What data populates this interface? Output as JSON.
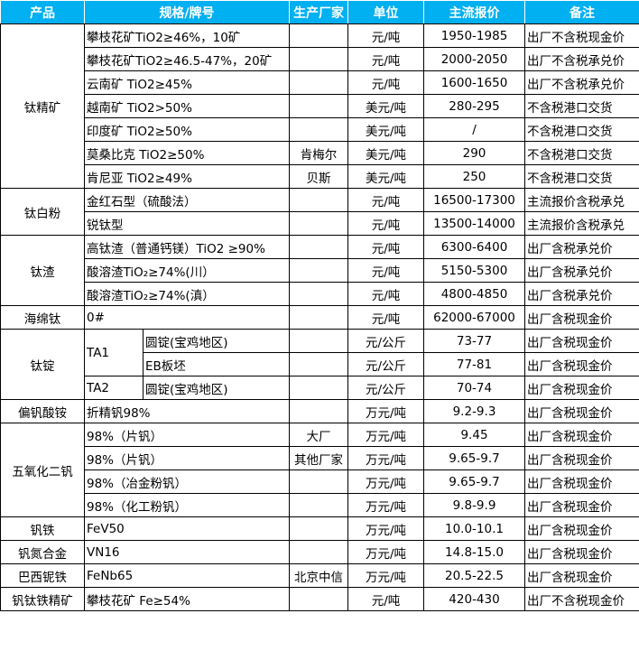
{
  "header_color": "#00b0f0",
  "headers": [
    "产品",
    "规格/牌号",
    "生产厂家",
    "单位",
    "主流报价",
    "备注"
  ],
  "groups": [
    {
      "product": "钛精矿",
      "rows": [
        {
          "spec": "攀枝花矿TiO2≥46%，10矿",
          "maker": "",
          "unit": "元/吨",
          "price": "1950-1985",
          "note": "出厂不含税现金价"
        },
        {
          "spec": "攀枝花矿TiO2≥46.5-47%，20矿",
          "maker": "",
          "unit": "元/吨",
          "price": "2000-2050",
          "note": "出厂不含税承兑价"
        },
        {
          "spec": "云南矿 TiO2≥45%",
          "maker": "",
          "unit": "元/吨",
          "price": "1600-1650",
          "note": "出厂不含税承兑价"
        },
        {
          "spec": "越南矿 TiO2>50%",
          "maker": "",
          "unit": "美元/吨",
          "price": "280-295",
          "note": "不含税港口交货"
        },
        {
          "spec": "印度矿 TiO2≥50%",
          "maker": "",
          "unit": "美元/吨",
          "price": "/",
          "note": "不含税港口交货"
        },
        {
          "spec": "莫桑比克 TiO2≥50%",
          "maker": "肯梅尔",
          "unit": "美元/吨",
          "price": "290",
          "note": "不含税港口交货"
        },
        {
          "spec": "肯尼亚 TiO2≥49%",
          "maker": "贝斯",
          "unit": "美元/吨",
          "price": "250",
          "note": "不含税港口交货"
        }
      ]
    },
    {
      "product": "钛白粉",
      "rows": [
        {
          "spec": "金红石型（硫酸法）",
          "maker": "",
          "unit": "元/吨",
          "price": "16500-17300",
          "note": "主流报价含税承兑"
        },
        {
          "spec": "锐钛型",
          "maker": "",
          "unit": "元/吨",
          "price": "13500-14000",
          "note": "主流报价含税承兑"
        }
      ]
    },
    {
      "product": "钛渣",
      "rows": [
        {
          "spec": "高钛渣（普通钙镁）TiO2 ≥90%",
          "maker": "",
          "unit": "元/吨",
          "price": "6300-6400",
          "note": "出厂含税承兑价"
        },
        {
          "spec": "酸溶渣TiO₂≥74%(川）",
          "maker": "",
          "unit": "元/吨",
          "price": "5150-5300",
          "note": "出厂含税承兑价"
        },
        {
          "spec": "酸溶渣TiO₂≥74%(滇）",
          "maker": "",
          "unit": "元/吨",
          "price": "4800-4850",
          "note": "出厂含税承兑价"
        }
      ]
    },
    {
      "product": "海绵钛",
      "rows": [
        {
          "spec": "0#",
          "maker": "",
          "unit": "元/吨",
          "price": "62000-67000",
          "note": "出厂含税现金价"
        }
      ]
    },
    {
      "product": "钛锭",
      "rows": [
        {
          "grade": "TA1",
          "spec": "圆锭(宝鸡地区)",
          "maker": "",
          "unit": "元/公斤",
          "price": "73-77",
          "note": "出厂含税现金价"
        },
        {
          "grade": "TA1",
          "spec": "EB板坯",
          "maker": "",
          "unit": "元/公斤",
          "price": "77-81",
          "note": "出厂含税现金价"
        },
        {
          "grade": "TA2",
          "spec": "圆锭(宝鸡地区)",
          "maker": "",
          "unit": "元/公斤",
          "price": "70-74",
          "note": "出厂含税现金价"
        }
      ]
    },
    {
      "product": "偏钒酸铵",
      "rows": [
        {
          "spec": "折精钒98%",
          "maker": "",
          "unit": "万元/吨",
          "price": "9.2-9.3",
          "note": "出厂含税现金价"
        }
      ]
    },
    {
      "product": "五氧化二钒",
      "rows": [
        {
          "spec": "98%（片钒）",
          "maker": "大厂",
          "unit": "万元/吨",
          "price": "9.45",
          "note": "出厂含税现金价"
        },
        {
          "spec": "98%（片钒）",
          "maker": "其他厂家",
          "unit": "万元/吨",
          "price": "9.65-9.7",
          "note": "出厂含税现金价"
        },
        {
          "spec": "98%（冶金粉钒）",
          "maker": "",
          "unit": "万元/吨",
          "price": "9.65-9.7",
          "note": "出厂含税现金价"
        },
        {
          "spec": "98%（化工粉钒）",
          "maker": "",
          "unit": "万元/吨",
          "price": "9.8-9.9",
          "note": "出厂含税现金价"
        }
      ]
    },
    {
      "product": "钒铁",
      "rows": [
        {
          "spec": "FeV50",
          "maker": "",
          "unit": "万元/吨",
          "price": "10.0-10.1",
          "note": "出厂含税现金价"
        }
      ]
    },
    {
      "product": "钒氮合金",
      "rows": [
        {
          "spec": "VN16",
          "maker": "",
          "unit": "万元/吨",
          "price": "14.8-15.0",
          "note": "出厂含税现金价"
        }
      ]
    },
    {
      "product": "巴西铌铁",
      "rows": [
        {
          "spec": "FeNb65",
          "maker": "北京中信",
          "unit": "万元/吨",
          "price": "20.5-22.5",
          "note": "出厂含税现金价"
        }
      ]
    },
    {
      "product": "钒钛铁精矿",
      "rows": [
        {
          "spec": "攀枝花矿 Fe≥54%",
          "maker": "",
          "unit": "元/吨",
          "price": "420-430",
          "note": "出厂不含税现金价"
        }
      ]
    }
  ]
}
